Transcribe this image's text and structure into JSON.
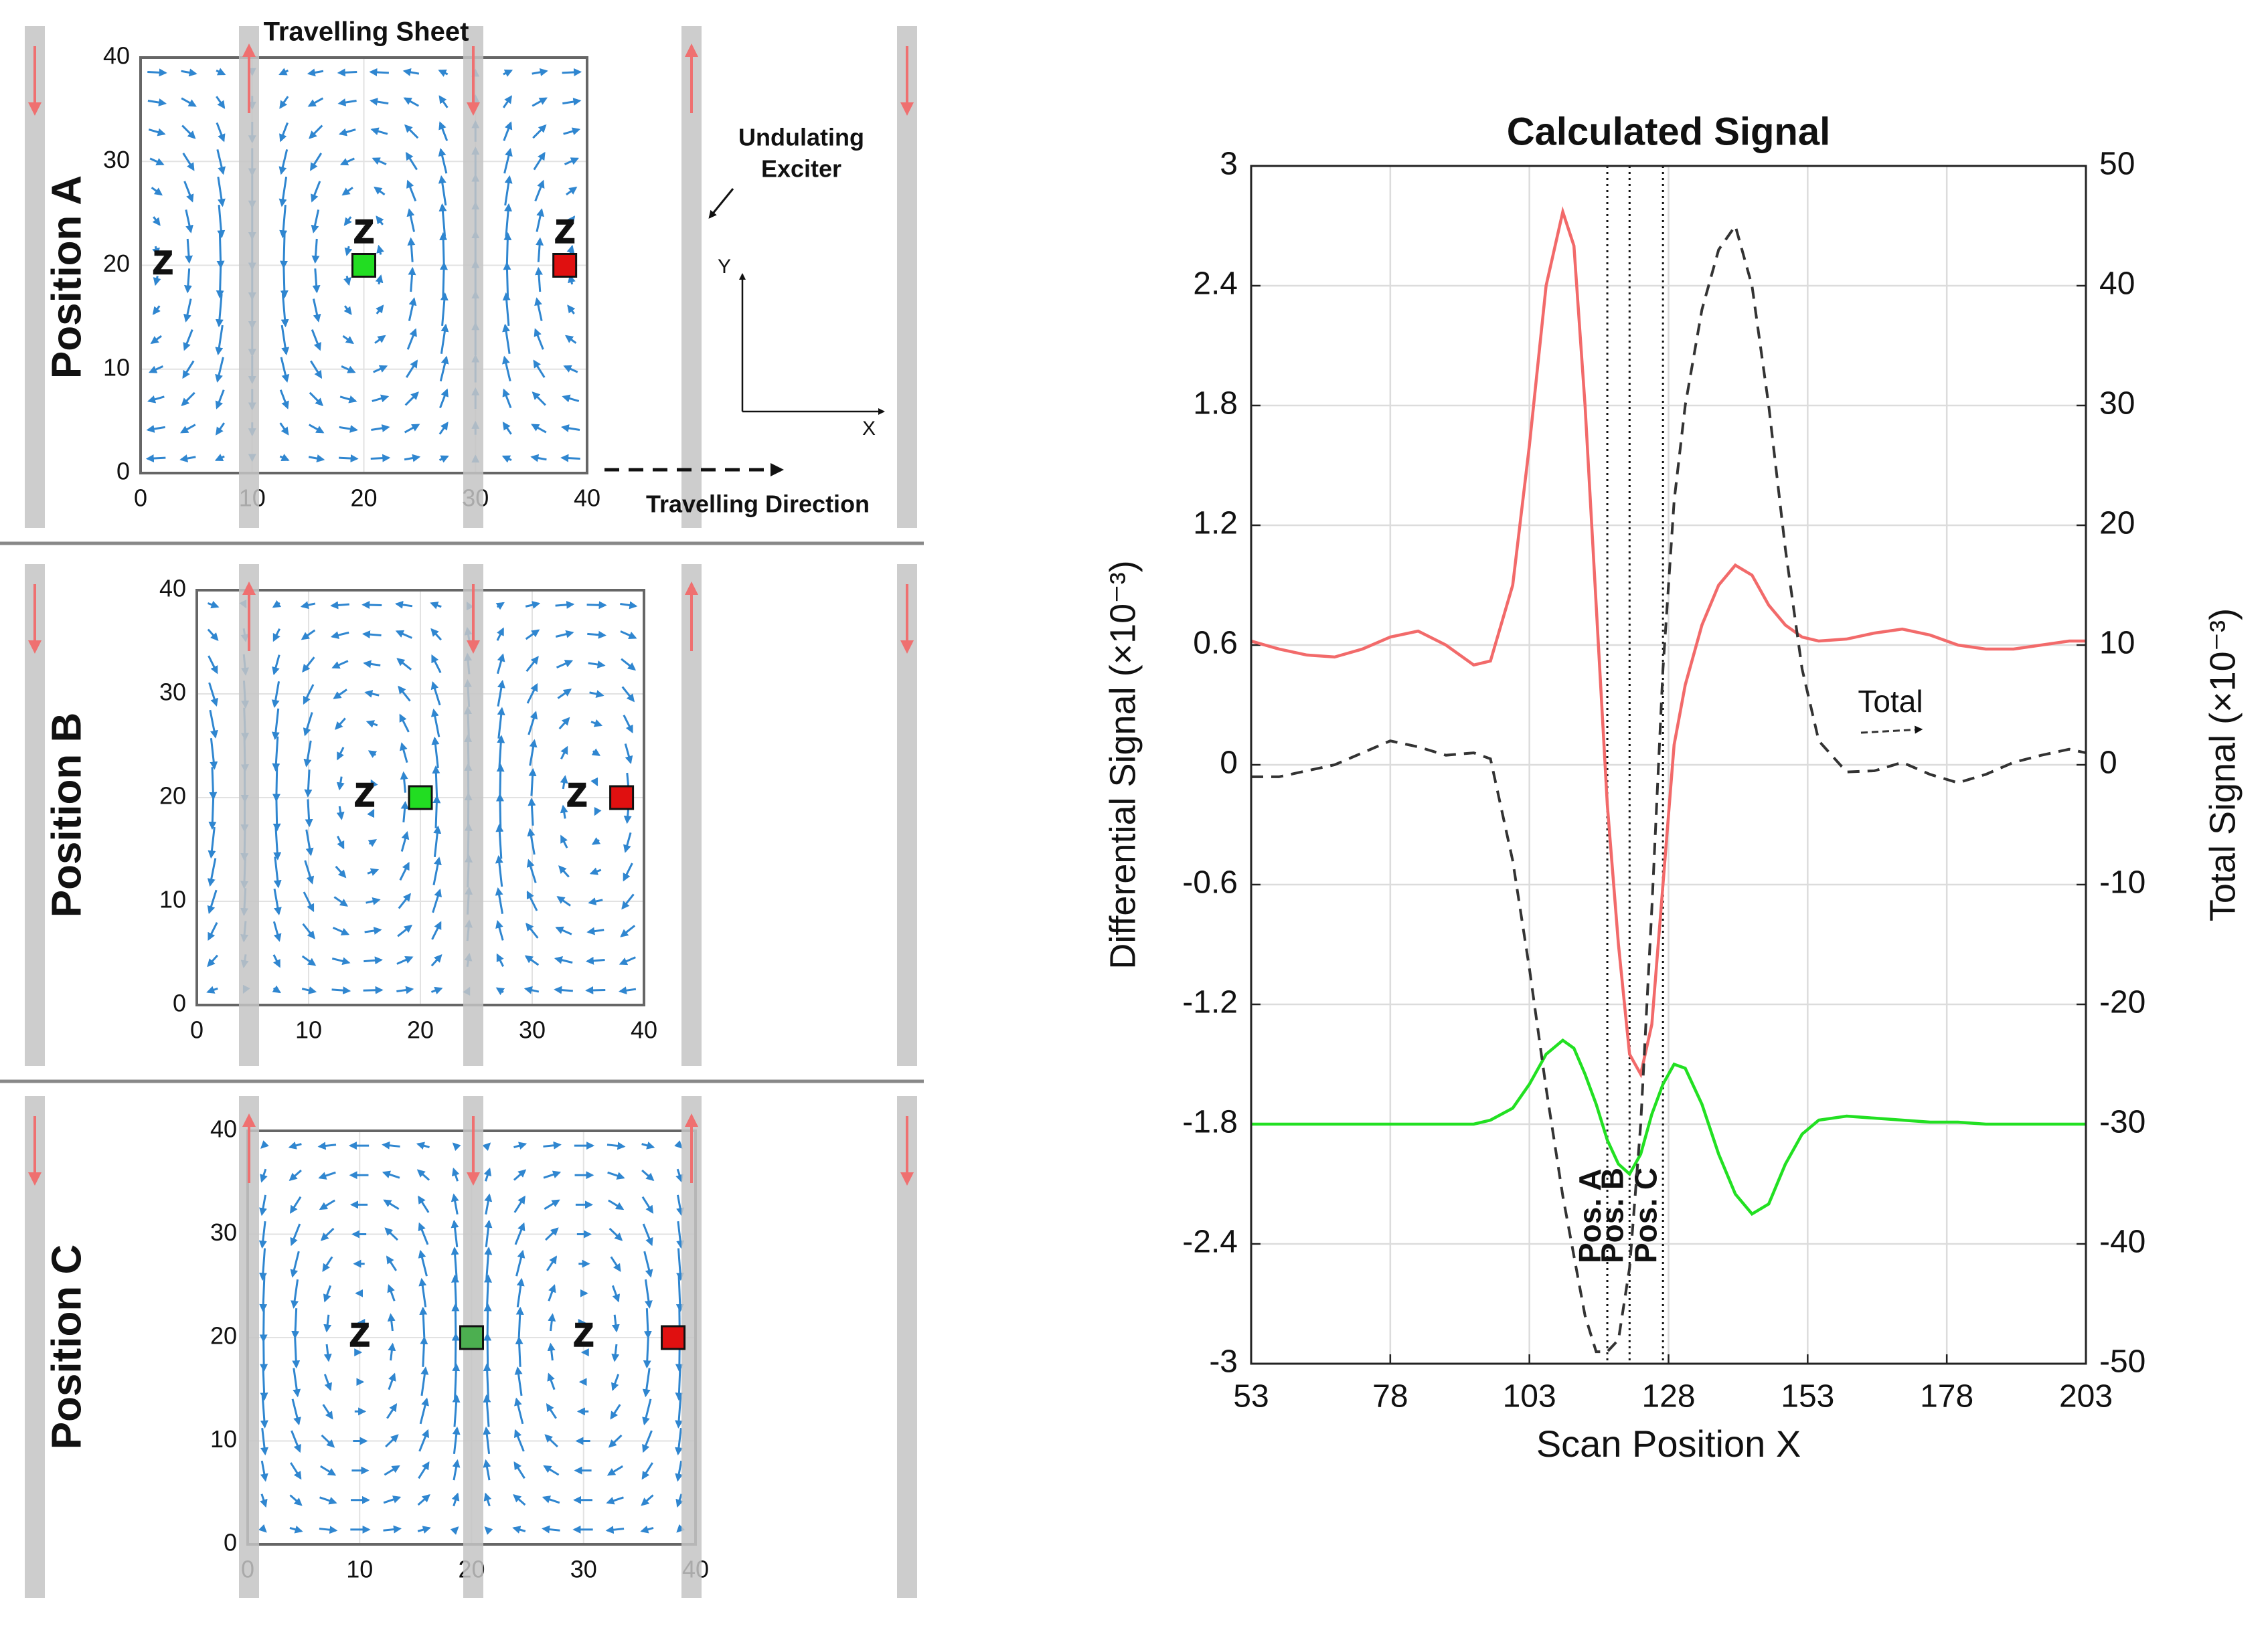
{
  "chart_data": [
    {
      "type": "vector-field",
      "label": "Position A",
      "xlim": [
        0,
        40
      ],
      "ylim": [
        0,
        40
      ],
      "xticks": [
        0,
        10,
        20,
        30,
        40
      ],
      "yticks": [
        0,
        10,
        20,
        30,
        40
      ],
      "markers": [
        {
          "x": 20,
          "y": 20,
          "color": "#22dd22"
        },
        {
          "x": 38,
          "y": 20,
          "color": "#e01010"
        }
      ],
      "z_labels": [
        {
          "x": 2,
          "y": 20,
          "text": "Z"
        },
        {
          "x": 20,
          "y": 23,
          "text": "Z"
        },
        {
          "x": 38,
          "y": 23,
          "text": "Z"
        }
      ],
      "annotations": [
        "Travelling Sheet",
        "Undulating",
        "Exciter",
        "Travelling Direction"
      ],
      "axis_icon": {
        "x": "X",
        "y": "Y"
      }
    },
    {
      "type": "vector-field",
      "label": "Position B",
      "xlim": [
        0,
        40
      ],
      "ylim": [
        0,
        40
      ],
      "xticks": [
        0,
        10,
        20,
        30,
        40
      ],
      "yticks": [
        0,
        10,
        20,
        30,
        40
      ],
      "markers": [
        {
          "x": 20,
          "y": 20,
          "color": "#22dd22"
        },
        {
          "x": 38,
          "y": 20,
          "color": "#e01010"
        }
      ],
      "z_labels": [
        {
          "x": 15,
          "y": 20,
          "text": "Z"
        },
        {
          "x": 34,
          "y": 20,
          "text": "Z"
        }
      ]
    },
    {
      "type": "vector-field",
      "label": "Position C",
      "xlim": [
        0,
        40
      ],
      "ylim": [
        0,
        40
      ],
      "xticks": [
        0,
        10,
        20,
        30,
        40
      ],
      "yticks": [
        0,
        10,
        20,
        30,
        40
      ],
      "markers": [
        {
          "x": 20,
          "y": 20,
          "color": "#4caf50"
        },
        {
          "x": 38,
          "y": 20,
          "color": "#e01010"
        }
      ],
      "z_labels": [
        {
          "x": 10,
          "y": 20,
          "text": "Z"
        },
        {
          "x": 30,
          "y": 20,
          "text": "Z"
        }
      ]
    },
    {
      "type": "line",
      "title": "Calculated Signal",
      "xlabel": "Scan Position X",
      "ylabel": "Differential Signal (×10⁻³)",
      "y2label": "Total Signal (×10⁻³)",
      "x": [
        53,
        58,
        63,
        68,
        73,
        78,
        83,
        88,
        93,
        96,
        100,
        103,
        106,
        109,
        111,
        113,
        115,
        117,
        119,
        121,
        123,
        125,
        127,
        129,
        131,
        134,
        137,
        140,
        143,
        146,
        149,
        152,
        155,
        160,
        165,
        170,
        175,
        180,
        185,
        190,
        195,
        200,
        203
      ],
      "xlim": [
        53,
        203
      ],
      "xticks": [
        53,
        78,
        103,
        128,
        153,
        178,
        203
      ],
      "ylim": [
        -3,
        3
      ],
      "yticks": [
        -3,
        -2.4,
        -1.8,
        -1.2,
        -0.6,
        0,
        0.6,
        1.2,
        1.8,
        2.4,
        3
      ],
      "y2lim": [
        -50,
        50
      ],
      "y2ticks": [
        -50,
        -40,
        -30,
        -20,
        -10,
        0,
        10,
        20,
        30,
        40,
        50
      ],
      "grid": true,
      "series": [
        {
          "color": "#f26a6a",
          "values": [
            0.62,
            0.58,
            0.55,
            0.54,
            0.58,
            0.64,
            0.67,
            0.6,
            0.5,
            0.52,
            0.9,
            1.6,
            2.4,
            2.77,
            2.6,
            1.8,
            0.8,
            -0.2,
            -0.9,
            -1.45,
            -1.55,
            -1.3,
            -0.6,
            0.1,
            0.4,
            0.7,
            0.9,
            1.0,
            0.95,
            0.8,
            0.7,
            0.64,
            0.62,
            0.63,
            0.66,
            0.68,
            0.65,
            0.6,
            0.58,
            0.58,
            0.6,
            0.62,
            0.62
          ]
        },
        {
          "color": "#22e022",
          "values": [
            -1.8,
            -1.8,
            -1.8,
            -1.8,
            -1.8,
            -1.8,
            -1.8,
            -1.8,
            -1.8,
            -1.78,
            -1.72,
            -1.6,
            -1.45,
            -1.38,
            -1.42,
            -1.55,
            -1.7,
            -1.88,
            -2.0,
            -2.05,
            -1.95,
            -1.75,
            -1.6,
            -1.5,
            -1.52,
            -1.7,
            -1.95,
            -2.15,
            -2.25,
            -2.2,
            -2.0,
            -1.85,
            -1.78,
            -1.76,
            -1.77,
            -1.78,
            -1.79,
            -1.79,
            -1.8,
            -1.8,
            -1.8,
            -1.8,
            -1.8
          ]
        },
        {
          "name": "Total",
          "color": "#333333",
          "dash": true,
          "axis": "y2",
          "values": [
            -1,
            -1,
            -0.5,
            0,
            1,
            2,
            1.5,
            0.8,
            1,
            0.5,
            -8,
            -17,
            -27,
            -36,
            -41,
            -46,
            -49,
            -49,
            -48,
            -42,
            -30,
            -12,
            8,
            22,
            30,
            38,
            43,
            45,
            40,
            30,
            18,
            8,
            2,
            -0.6,
            -0.5,
            0.2,
            -0.8,
            -1.5,
            -0.8,
            0.2,
            0.8,
            1.3,
            1
          ]
        }
      ],
      "vlines": [
        {
          "x": 117,
          "label": "Pos. A"
        },
        {
          "x": 121,
          "label": "Pos. B"
        },
        {
          "x": 127,
          "label": "Pos. C"
        }
      ]
    }
  ]
}
